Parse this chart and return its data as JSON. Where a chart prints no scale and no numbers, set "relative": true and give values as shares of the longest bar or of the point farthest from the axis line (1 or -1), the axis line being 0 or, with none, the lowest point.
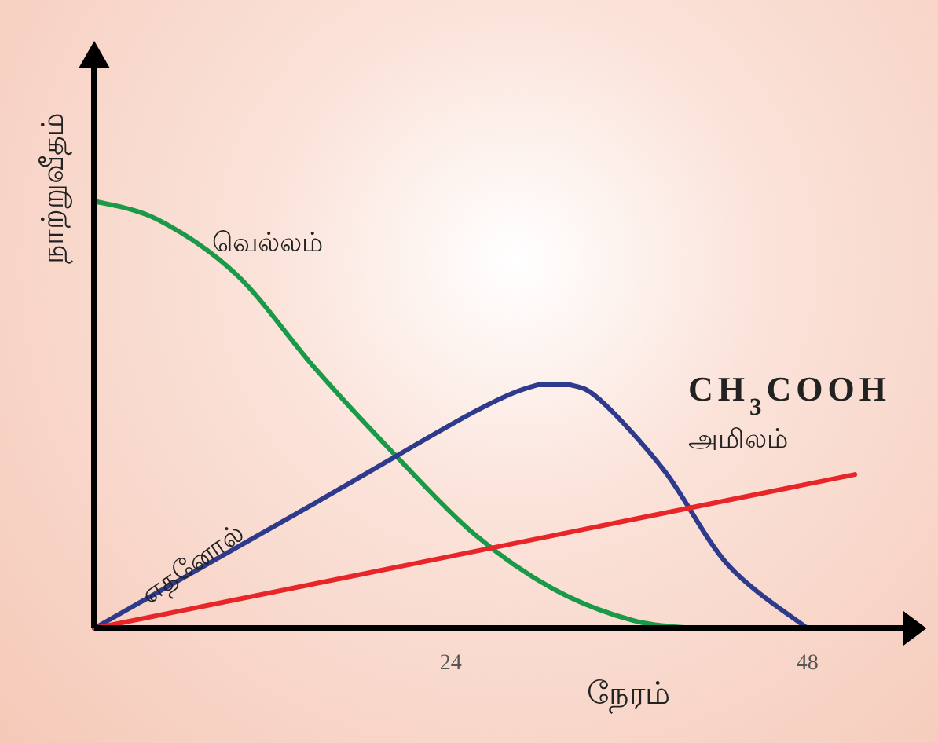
{
  "chart_data": {
    "type": "line",
    "relative": true,
    "xlabel": "நேரம்",
    "ylabel": "நாற்றுவீதம்",
    "xlim": [
      0,
      55
    ],
    "xticks": [
      24,
      48
    ],
    "grid": false,
    "marker": "none",
    "line_style": "solid",
    "series": [
      {
        "name": "வெல்லம்",
        "color": "#1a9a48",
        "x": [
          0,
          4.3,
          9.6,
          14.9,
          20.3,
          25.6,
          30.9,
          36.3,
          40.5
        ],
        "values": [
          1,
          0.956,
          0.827,
          0.607,
          0.404,
          0.22,
          0.092,
          0.018,
          0
        ]
      },
      {
        "name": "எதனோல்",
        "color": "#2e3a8c",
        "x": [
          0,
          14.9,
          25.6,
          29.9,
          32,
          34.1,
          38.4,
          42.7,
          48
        ],
        "values": [
          0,
          0.294,
          0.507,
          0.57,
          0.57,
          0.533,
          0.368,
          0.147,
          0
        ]
      },
      {
        "name": "CH$_{3}$COOH அமிலம்",
        "color": "#e8262a",
        "x": [
          0,
          51.2
        ],
        "values": [
          0,
          0.36
        ]
      }
    ]
  }
}
